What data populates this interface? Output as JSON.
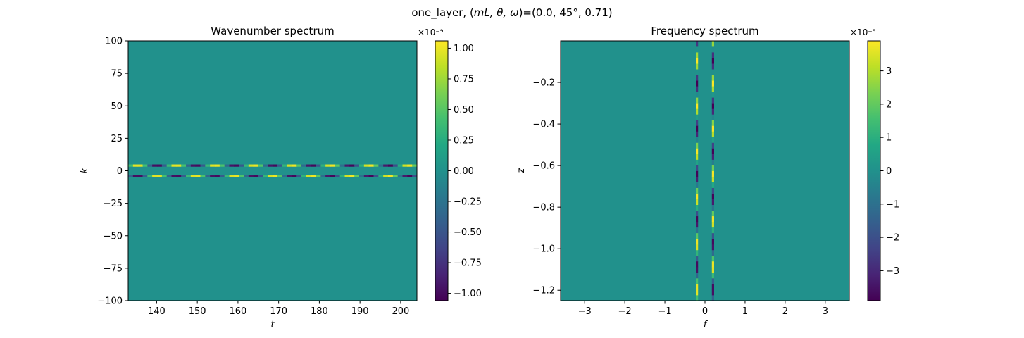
{
  "figure": {
    "suptitle_prefix": "one_layer, (",
    "suptitle_math": "mL, θ, ω",
    "suptitle_suffix": ")=(0.0, 45°, 0.71)"
  },
  "chart_data": [
    {
      "type": "heatmap",
      "title": "Wavenumber spectrum",
      "xlabel": "t",
      "ylabel": "k",
      "xlim": [
        133,
        204
      ],
      "ylim": [
        -100,
        100
      ],
      "x_ticks": [
        140,
        150,
        160,
        170,
        180,
        190,
        200
      ],
      "x_tick_labels": [
        "140",
        "150",
        "160",
        "170",
        "180",
        "190",
        "200"
      ],
      "y_ticks": [
        100,
        75,
        50,
        25,
        0,
        -25,
        -50,
        -75,
        -100
      ],
      "y_tick_labels": [
        "100",
        "75",
        "50",
        "25",
        "0",
        "−25",
        "−50",
        "−75",
        "−100"
      ],
      "colormap": "viridis",
      "background_value": 0,
      "bands": [
        {
          "center": 4
        },
        {
          "center": -4
        }
      ],
      "band_orientation": "horizontal",
      "oscillation_period": 9.5,
      "colorbar": {
        "range": [
          -1.06,
          1.06
        ],
        "offset_label": "×10⁻⁹",
        "ticks": [
          1.0,
          0.75,
          0.5,
          0.25,
          0.0,
          -0.25,
          -0.5,
          -0.75,
          -1.0
        ],
        "tick_labels": [
          "1.00",
          "0.75",
          "0.50",
          "0.25",
          "0.00",
          "−0.25",
          "−0.50",
          "−0.75",
          "−1.00"
        ]
      }
    },
    {
      "type": "heatmap",
      "title": "Frequency spectrum",
      "xlabel": "f",
      "ylabel": "z",
      "xlim": [
        -3.6,
        3.6
      ],
      "ylim": [
        -1.25,
        0
      ],
      "x_ticks": [
        -3,
        -2,
        -1,
        0,
        1,
        2,
        3
      ],
      "x_tick_labels": [
        "−3",
        "−2",
        "−1",
        "0",
        "1",
        "2",
        "3"
      ],
      "y_ticks": [
        -0.2,
        -0.4,
        -0.6,
        -0.8,
        -1.0,
        -1.2
      ],
      "y_tick_labels": [
        "−0.2",
        "−0.4",
        "−0.6",
        "−0.8",
        "−1.0",
        "−1.2"
      ],
      "colormap": "viridis",
      "background_value": 0,
      "bands": [
        {
          "center": -0.2
        },
        {
          "center": 0.2
        }
      ],
      "band_orientation": "vertical",
      "oscillation_period": 0.22,
      "colorbar": {
        "range": [
          -3.9,
          3.9
        ],
        "offset_label": "×10⁻⁹",
        "ticks": [
          3,
          2,
          1,
          0,
          -1,
          -2,
          -3
        ],
        "tick_labels": [
          "3",
          "2",
          "1",
          "0",
          "−1",
          "−2",
          "−3"
        ]
      }
    }
  ]
}
